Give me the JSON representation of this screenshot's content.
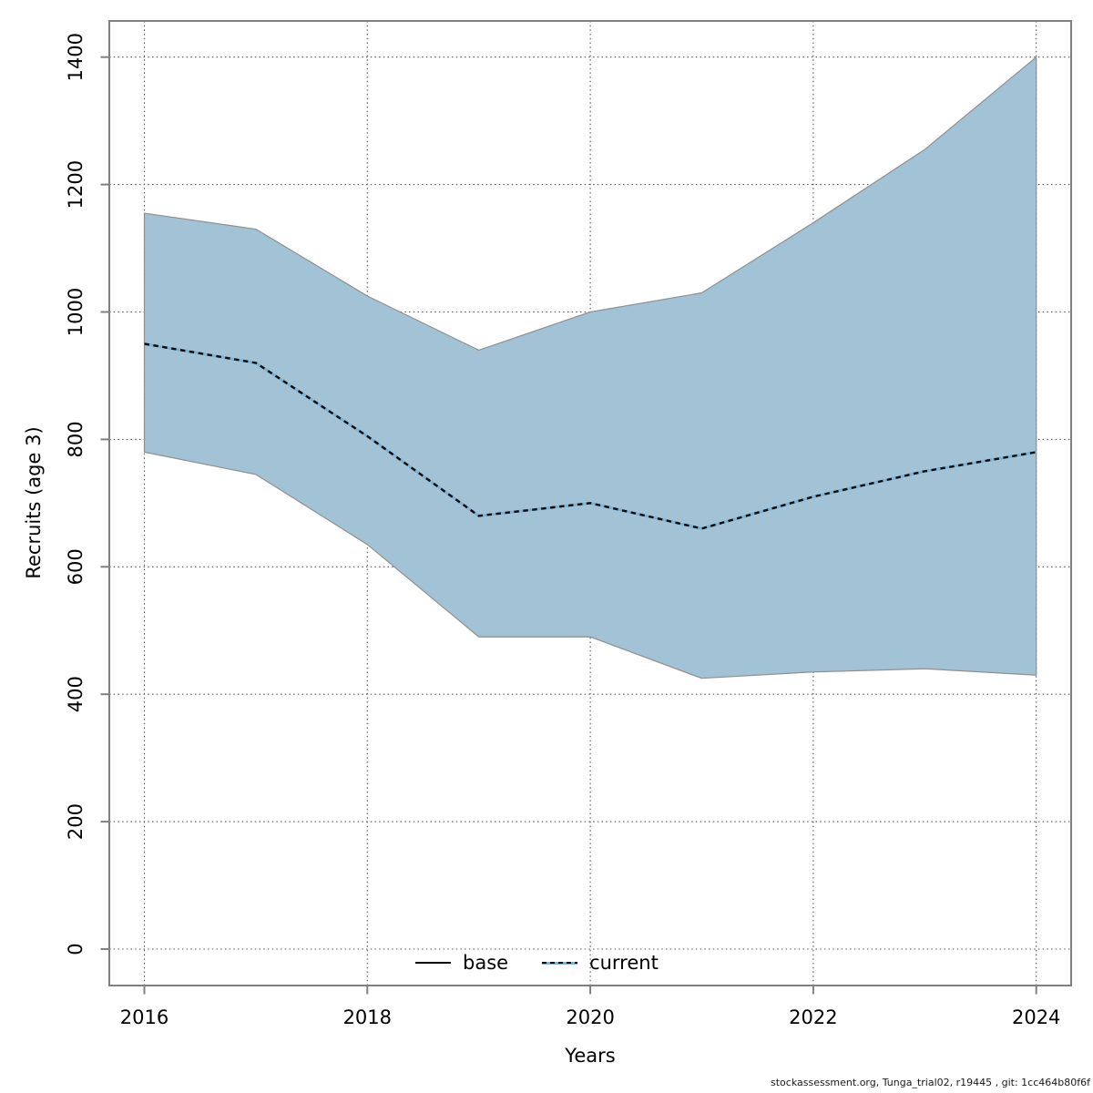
{
  "chart_data": {
    "type": "area",
    "title": "",
    "xlabel": "Years",
    "ylabel": "Recruits (age 3)",
    "x": [
      2016,
      2017,
      2018,
      2019,
      2020,
      2021,
      2022,
      2023,
      2024
    ],
    "series": [
      {
        "name": "current",
        "values": [
          950,
          920,
          805,
          680,
          700,
          660,
          710,
          750,
          780
        ]
      }
    ],
    "band": {
      "series": "current",
      "upper": [
        1155,
        1130,
        1025,
        940,
        1000,
        1030,
        1140,
        1255,
        1400
      ],
      "lower": [
        780,
        745,
        635,
        490,
        490,
        425,
        435,
        440,
        430
      ]
    },
    "legend": [
      {
        "label": "base",
        "line": "solid",
        "color": "#000000"
      },
      {
        "label": "current",
        "line": "dashed",
        "color": "#4d8fb8"
      }
    ],
    "legend_position": "bottom-center",
    "xticks": [
      2016,
      2018,
      2020,
      2022,
      2024
    ],
    "yticks": [
      0,
      200,
      400,
      600,
      800,
      1000,
      1200,
      1400
    ],
    "ylim": [
      0,
      1400
    ],
    "xlim": [
      2016,
      2024
    ],
    "grid": "dotted",
    "colors": {
      "band_fill": "#a2c2d5",
      "band_border": "#909090",
      "line_underlay": "#7db3d6",
      "line_dash": "#0a0a0a",
      "grid": "#555555",
      "axis": "#808080"
    }
  },
  "footer": {
    "text": "stockassessment.org, Tunga_trial02, r19445 , git: 1cc464b80f6f"
  }
}
